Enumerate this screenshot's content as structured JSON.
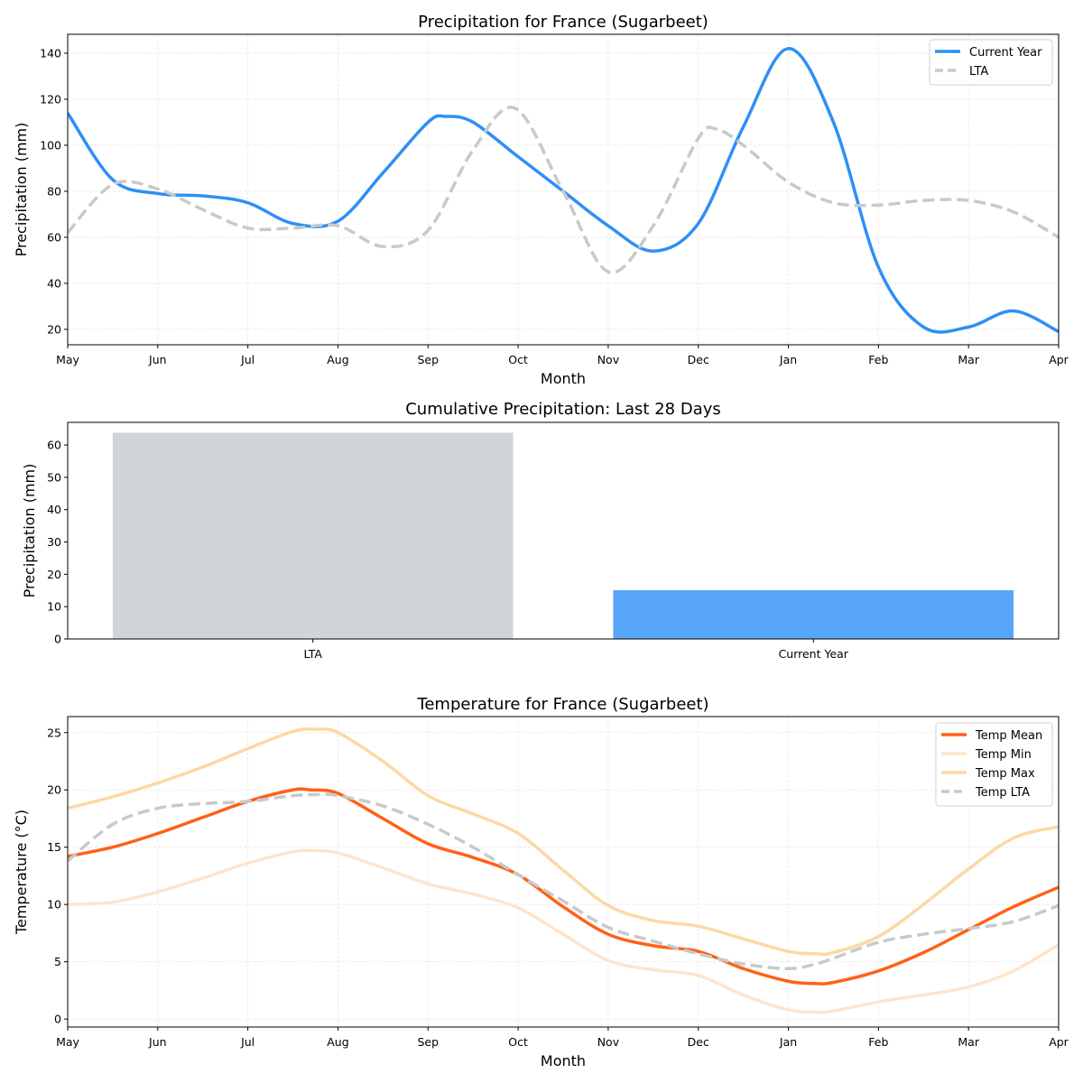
{
  "chart_data": [
    {
      "type": "line",
      "title": "Precipitation for France (Sugarbeet)",
      "xlabel": "Month",
      "ylabel": "Precipitation (mm)",
      "x_ticks": [
        "May",
        "Jun",
        "Jul",
        "Aug",
        "Sep",
        "Oct",
        "Nov",
        "Dec",
        "Jan",
        "Feb",
        "Mar",
        "Apr"
      ],
      "xlim": [
        0,
        11
      ],
      "ylim": [
        13.3,
        148.2
      ],
      "y_ticks": [
        20,
        40,
        60,
        80,
        100,
        120,
        140
      ],
      "grid": true,
      "legend": "top-right",
      "series": [
        {
          "name": "Current Year",
          "color": "#2f8ff5",
          "style": "solid",
          "x": [
            0,
            0.5,
            1,
            1.5,
            2,
            2.5,
            3,
            3.5,
            4,
            4.2,
            4.5,
            5,
            5.5,
            6,
            6.5,
            7,
            7.5,
            8,
            8.5,
            9,
            9.5,
            10,
            10.5,
            11
          ],
          "y": [
            114,
            85,
            79,
            78,
            75,
            66,
            67,
            88,
            110,
            112.5,
            110,
            95,
            80,
            65,
            54,
            66,
            108,
            142,
            110,
            47,
            21,
            21,
            28,
            19
          ]
        },
        {
          "name": "LTA",
          "color": "#c8c9ca",
          "style": "dashed",
          "x": [
            0,
            0.5,
            1,
            1.5,
            2,
            2.5,
            3,
            3.5,
            4,
            4.5,
            4.97,
            5.5,
            6,
            6.5,
            7,
            7.2,
            7.5,
            8,
            8.5,
            9,
            9.5,
            10,
            10.5,
            11
          ],
          "y": [
            62,
            83,
            81,
            72,
            64,
            64,
            65,
            56,
            63,
            98,
            116,
            80,
            45,
            65,
            103,
            107,
            100,
            84,
            75,
            74,
            76,
            76,
            71,
            60
          ]
        }
      ]
    },
    {
      "type": "bar",
      "title": "Cumulative Precipitation: Last 28 Days",
      "xlabel": "",
      "ylabel": "Precipitation (mm)",
      "categories": [
        "LTA",
        "Current Year"
      ],
      "values": [
        63.8,
        15.1
      ],
      "colors": [
        "#d1d5d8",
        "#58a6fa"
      ],
      "ylim": [
        0,
        67
      ],
      "y_ticks": [
        0,
        10,
        20,
        30,
        40,
        50,
        60
      ],
      "grid": false
    },
    {
      "type": "line",
      "title": "Temperature for France (Sugarbeet)",
      "xlabel": "Month",
      "ylabel": "Temperature (°C)",
      "x_ticks": [
        "May",
        "Jun",
        "Jul",
        "Aug",
        "Sep",
        "Oct",
        "Nov",
        "Dec",
        "Jan",
        "Feb",
        "Mar",
        "Apr"
      ],
      "xlim": [
        0,
        11
      ],
      "ylim": [
        -0.7,
        26.4
      ],
      "y_ticks": [
        0,
        5,
        10,
        15,
        20,
        25
      ],
      "grid": true,
      "legend": "top-right",
      "series": [
        {
          "name": "Temp Mean",
          "color": "#ff6116",
          "style": "solid",
          "x": [
            0,
            0.5,
            1,
            1.5,
            2,
            2.5,
            2.7,
            3,
            3.5,
            4,
            4.5,
            5,
            5.5,
            6,
            6.5,
            7,
            7.5,
            8,
            8.3,
            8.5,
            9,
            9.5,
            10,
            10.5,
            11
          ],
          "y": [
            14.2,
            15,
            16.2,
            17.6,
            19,
            20,
            20,
            19.7,
            17.5,
            15.3,
            14.1,
            12.6,
            9.8,
            7.4,
            6.4,
            5.9,
            4.4,
            3.3,
            3.1,
            3.2,
            4.2,
            5.8,
            7.8,
            9.8,
            11.5
          ]
        },
        {
          "name": "Temp Min",
          "color": "#ffe4cc",
          "style": "solid",
          "x": [
            0,
            0.5,
            1,
            1.5,
            2,
            2.5,
            2.7,
            3,
            3.5,
            4,
            4.5,
            5,
            5.5,
            6,
            6.5,
            7,
            7.5,
            8,
            8.3,
            8.5,
            9,
            9.5,
            10,
            10.5,
            11
          ],
          "y": [
            10,
            10.2,
            11.1,
            12.3,
            13.6,
            14.6,
            14.7,
            14.5,
            13.2,
            11.8,
            10.9,
            9.7,
            7.4,
            5.1,
            4.3,
            3.8,
            2.1,
            0.8,
            0.6,
            0.7,
            1.5,
            2.1,
            2.8,
            4.2,
            6.5
          ]
        },
        {
          "name": "Temp Max",
          "color": "#fbd9a5",
          "style": "solid",
          "x": [
            0,
            0.5,
            1,
            1.5,
            2,
            2.5,
            2.75,
            3,
            3.5,
            4,
            4.5,
            5,
            5.5,
            6,
            6.5,
            7,
            7.5,
            8,
            8.3,
            8.5,
            9,
            9.5,
            10,
            10.5,
            11
          ],
          "y": [
            18.4,
            19.4,
            20.6,
            22,
            23.6,
            25.1,
            25.3,
            25,
            22.5,
            19.5,
            17.9,
            16.2,
            13,
            9.9,
            8.6,
            8.1,
            7,
            5.9,
            5.7,
            5.8,
            7.2,
            10,
            13.1,
            15.8,
            16.8
          ]
        },
        {
          "name": "Temp LTA",
          "color": "#c8c9ca",
          "style": "dashed",
          "x": [
            0,
            0.5,
            1,
            1.5,
            2,
            2.5,
            2.8,
            3,
            3.5,
            4,
            4.5,
            5,
            5.5,
            6,
            6.5,
            7,
            7.5,
            8,
            8.3,
            8.5,
            9,
            9.5,
            10,
            10.5,
            11
          ],
          "y": [
            13.8,
            17,
            18.4,
            18.8,
            19,
            19.5,
            19.6,
            19.5,
            18.6,
            17,
            15,
            12.6,
            10.3,
            8,
            6.8,
            5.7,
            4.8,
            4.4,
            4.8,
            5.3,
            6.7,
            7.4,
            7.9,
            8.5,
            9.9
          ]
        }
      ]
    }
  ]
}
